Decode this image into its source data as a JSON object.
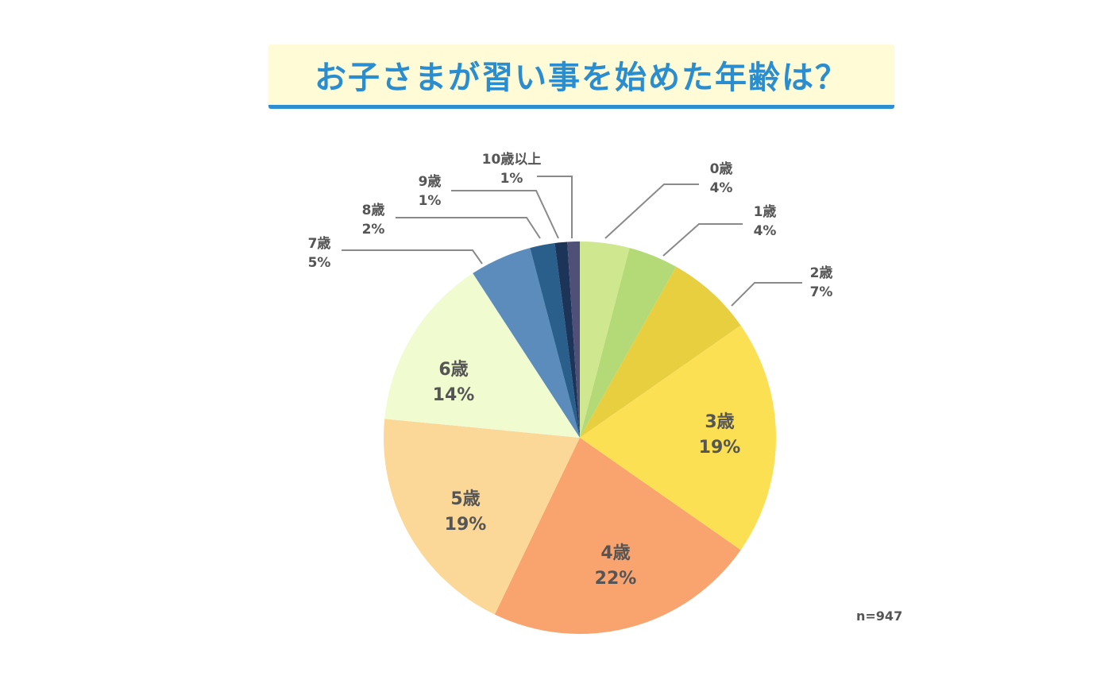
{
  "title": "お子さまが習い事を始めた年齢は？",
  "sample_size": "n=947",
  "chart_data": {
    "type": "pie",
    "title": "お子さまが習い事を始めた年齢は？",
    "n": 947,
    "start_angle": "12 o'clock, clockwise",
    "slices": [
      {
        "label": "0歳",
        "value": 4,
        "pct": "4%",
        "color": "#cfe88f"
      },
      {
        "label": "1歳",
        "value": 4,
        "pct": "4%",
        "color": "#b3da77"
      },
      {
        "label": "2歳",
        "value": 7,
        "pct": "7%",
        "color": "#e8cf3f"
      },
      {
        "label": "3歳",
        "value": 19,
        "pct": "19%",
        "color": "#fce053"
      },
      {
        "label": "4歳",
        "value": 22,
        "pct": "22%",
        "color": "#f9a36f"
      },
      {
        "label": "5歳",
        "value": 19,
        "pct": "19%",
        "color": "#fcd898"
      },
      {
        "label": "6歳",
        "value": 14,
        "pct": "14%",
        "color": "#f0fbcf"
      },
      {
        "label": "7歳",
        "value": 5,
        "pct": "5%",
        "color": "#5b8cbb"
      },
      {
        "label": "8歳",
        "value": 2,
        "pct": "2%",
        "color": "#2a5f8c"
      },
      {
        "label": "9歳",
        "value": 1,
        "pct": "1%",
        "color": "#1c3458"
      },
      {
        "label": "10歳以上",
        "value": 1,
        "pct": "1%",
        "color": "#4f4f78"
      }
    ]
  }
}
